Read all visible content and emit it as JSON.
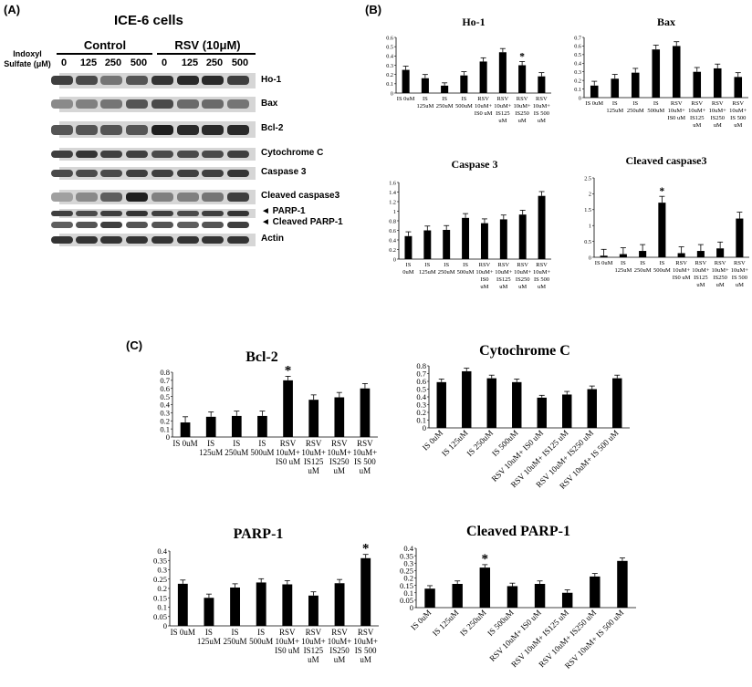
{
  "panels": {
    "a": "(A)",
    "b": "(B)",
    "c": "(C)"
  },
  "blot": {
    "title": "ICE-6 cells",
    "indoxyl_label": [
      "Indoxyl",
      "Sulfate (μM)"
    ],
    "groups": [
      "Control",
      "RSV (10μM)"
    ],
    "doses": [
      "0",
      "125",
      "250",
      "500",
      "0",
      "125",
      "250",
      "500"
    ],
    "rows": [
      {
        "name": "Ho-1",
        "intensity": [
          0.8,
          0.75,
          0.55,
          0.7,
          0.85,
          0.9,
          0.9,
          0.8
        ]
      },
      {
        "name": "Bax",
        "intensity": [
          0.45,
          0.5,
          0.55,
          0.7,
          0.75,
          0.6,
          0.6,
          0.55
        ]
      },
      {
        "name": "Bcl-2",
        "intensity": [
          0.7,
          0.7,
          0.7,
          0.7,
          0.95,
          0.9,
          0.9,
          0.9
        ]
      },
      {
        "name": "Cytochrome C",
        "intensity": [
          0.8,
          0.85,
          0.8,
          0.8,
          0.75,
          0.75,
          0.75,
          0.8
        ]
      },
      {
        "name": "Caspase 3",
        "intensity": [
          0.75,
          0.75,
          0.75,
          0.8,
          0.8,
          0.8,
          0.8,
          0.85
        ]
      },
      {
        "name": "Cleaved caspase3",
        "intensity": [
          0.35,
          0.45,
          0.65,
          0.95,
          0.5,
          0.5,
          0.55,
          0.8
        ]
      },
      {
        "name": "PARP-1",
        "intensity": [
          0.8,
          0.75,
          0.8,
          0.85,
          0.8,
          0.75,
          0.8,
          0.85
        ]
      },
      {
        "name": "Cleaved PARP-1",
        "intensity": [
          0.65,
          0.7,
          0.8,
          0.7,
          0.7,
          0.65,
          0.7,
          0.8
        ]
      },
      {
        "name": "Actin",
        "intensity": [
          0.85,
          0.85,
          0.85,
          0.85,
          0.85,
          0.85,
          0.85,
          0.85
        ]
      }
    ],
    "arrow_glyph": "◄"
  },
  "chart_data": [
    {
      "id": "ho1",
      "type": "bar",
      "title": "Ho-1",
      "ylim": [
        0,
        0.6
      ],
      "yticks": [
        "0",
        "0.1",
        "0.2",
        "0.3",
        "0.4",
        "0.5",
        "0.6"
      ],
      "categories": [
        [
          "IS 0uM"
        ],
        [
          "IS",
          "125uM"
        ],
        [
          "IS",
          "250uM"
        ],
        [
          "IS",
          "500uM"
        ],
        [
          "RSV",
          "10uM+",
          "IS0 uM"
        ],
        [
          "RSV",
          "10uM+",
          "IS125",
          "uM"
        ],
        [
          "RSV",
          "10uM+",
          "IS250",
          "uM"
        ],
        [
          "RSV",
          "10uM+",
          "IS 500",
          "uM"
        ]
      ],
      "values": [
        0.25,
        0.16,
        0.08,
        0.19,
        0.34,
        0.44,
        0.3,
        0.18
      ],
      "errors": [
        0.04,
        0.04,
        0.03,
        0.04,
        0.04,
        0.04,
        0.04,
        0.04
      ],
      "significant": [
        false,
        false,
        false,
        false,
        false,
        false,
        true,
        false
      ],
      "star": "*"
    },
    {
      "id": "bax",
      "type": "bar",
      "title": "Bax",
      "ylim": [
        0,
        0.7
      ],
      "yticks": [
        "0",
        "0.1",
        "0.2",
        "0.3",
        "0.4",
        "0.5",
        "0.6",
        "0.7"
      ],
      "categories": [
        [
          "IS 0uM"
        ],
        [
          "IS",
          "125uM"
        ],
        [
          "IS",
          "250uM"
        ],
        [
          "IS",
          "500uM"
        ],
        [
          "RSV",
          "10uM+",
          "IS0 uM"
        ],
        [
          "RSV",
          "10uM+",
          "IS125",
          "uM"
        ],
        [
          "RSV",
          "10uM+",
          "IS250",
          "uM"
        ],
        [
          "RSV",
          "10uM+",
          "IS 500",
          "uM"
        ]
      ],
      "values": [
        0.14,
        0.22,
        0.29,
        0.56,
        0.6,
        0.3,
        0.34,
        0.24
      ],
      "errors": [
        0.05,
        0.05,
        0.05,
        0.05,
        0.05,
        0.05,
        0.05,
        0.05
      ],
      "significant": [
        false,
        false,
        false,
        false,
        false,
        false,
        false,
        false
      ],
      "star": "*"
    },
    {
      "id": "casp3",
      "type": "bar",
      "title": "Caspase 3",
      "ylim": [
        0,
        1.6
      ],
      "yticks": [
        "0",
        "0.2",
        "0.4",
        "0.6",
        "0.8",
        "1",
        "1.2",
        "1.4",
        "1.6"
      ],
      "categories": [
        [
          "IS",
          "0uM"
        ],
        [
          "IS",
          "125uM"
        ],
        [
          "IS",
          "250uM"
        ],
        [
          "IS",
          "500uM"
        ],
        [
          "RSV",
          "10uM+",
          "IS0",
          "uM"
        ],
        [
          "RSV",
          "10uM+",
          "IS125",
          "uM"
        ],
        [
          "RSV",
          "10uM+",
          "IS250",
          "uM"
        ],
        [
          "RSV",
          "10uM+",
          "IS 500",
          "uM"
        ]
      ],
      "values": [
        0.48,
        0.6,
        0.61,
        0.86,
        0.75,
        0.83,
        0.93,
        1.32
      ],
      "errors": [
        0.09,
        0.09,
        0.09,
        0.09,
        0.09,
        0.09,
        0.09,
        0.09
      ],
      "significant": [
        false,
        false,
        false,
        false,
        false,
        false,
        false,
        false
      ],
      "star": "*"
    },
    {
      "id": "clcasp3",
      "type": "bar",
      "title": "Cleaved caspase3",
      "ylim": [
        0,
        2.5
      ],
      "yticks": [
        "0",
        "0.5",
        "1",
        "1.5",
        "2",
        "2.5"
      ],
      "categories": [
        [
          "IS 0uM"
        ],
        [
          "IS",
          "125uM"
        ],
        [
          "IS",
          "250uM"
        ],
        [
          "IS",
          "500uM"
        ],
        [
          "RSV",
          "10uM+",
          "IS0 uM"
        ],
        [
          "RSV",
          "10uM+",
          "IS125",
          "uM"
        ],
        [
          "RSV",
          "10uM+",
          "IS250",
          "uM"
        ],
        [
          "RSV",
          "10uM+",
          "IS 500",
          "uM"
        ]
      ],
      "values": [
        0.05,
        0.1,
        0.2,
        1.72,
        0.13,
        0.2,
        0.28,
        1.22
      ],
      "errors": [
        0.2,
        0.2,
        0.2,
        0.2,
        0.2,
        0.2,
        0.2,
        0.2
      ],
      "significant": [
        false,
        false,
        false,
        true,
        false,
        false,
        false,
        false
      ],
      "star": "*"
    },
    {
      "id": "bcl2",
      "type": "bar",
      "title": "Bcl-2",
      "ylim": [
        0,
        0.8
      ],
      "yticks": [
        "0",
        "0.1",
        "0.2",
        "0.3",
        "0.4",
        "0.5",
        "0.6",
        "0.7",
        "0.8"
      ],
      "categories": [
        [
          "IS 0uM"
        ],
        [
          "IS",
          "125uM"
        ],
        [
          "IS",
          "250uM"
        ],
        [
          "IS",
          "500uM"
        ],
        [
          "RSV",
          "10uM+",
          "IS0 uM"
        ],
        [
          "RSV",
          "10uM+",
          "IS125",
          "uM"
        ],
        [
          "RSV",
          "10uM+",
          "IS250",
          "uM"
        ],
        [
          "RSV",
          "10uM+",
          "IS 500",
          "uM"
        ]
      ],
      "values": [
        0.18,
        0.25,
        0.26,
        0.26,
        0.7,
        0.46,
        0.49,
        0.6
      ],
      "errors": [
        0.07,
        0.06,
        0.06,
        0.06,
        0.05,
        0.06,
        0.06,
        0.06
      ],
      "significant": [
        false,
        false,
        false,
        false,
        true,
        false,
        false,
        false
      ],
      "star": "*"
    },
    {
      "id": "cytc",
      "type": "bar",
      "title": "Cytochrome C",
      "ylim": [
        0,
        0.8
      ],
      "yticks": [
        "0",
        "0.1",
        "0.2",
        "0.3",
        "0.4",
        "0.5",
        "0.6",
        "0.7",
        "0.8"
      ],
      "categories": [
        [
          "IS 0uM"
        ],
        [
          "IS 125uM"
        ],
        [
          "IS 250uM"
        ],
        [
          "IS 500uM"
        ],
        [
          "RSV 10uM+ IS0 uM"
        ],
        [
          "RSV 10uM+ IS125 uM"
        ],
        [
          "RSV 10uM+ IS250 uM"
        ],
        [
          "RSV 10uM+ IS 500 uM"
        ]
      ],
      "values": [
        0.59,
        0.73,
        0.64,
        0.59,
        0.39,
        0.43,
        0.5,
        0.64
      ],
      "errors": [
        0.04,
        0.04,
        0.04,
        0.04,
        0.03,
        0.04,
        0.04,
        0.04
      ],
      "significant": [
        false,
        false,
        false,
        false,
        false,
        false,
        false,
        false
      ],
      "star": "*"
    },
    {
      "id": "parp1",
      "type": "bar",
      "title": "PARP-1",
      "ylim": [
        0,
        0.4
      ],
      "yticks": [
        "0",
        "0.05",
        "0.1",
        "0.15",
        "0.2",
        "0.25",
        "0.3",
        "0.35",
        "0.4"
      ],
      "categories": [
        [
          "IS 0uM"
        ],
        [
          "IS",
          "125uM"
        ],
        [
          "IS",
          "250uM"
        ],
        [
          "IS",
          "500uM"
        ],
        [
          "RSV",
          "10uM+",
          "IS0 uM"
        ],
        [
          "RSV",
          "10uM+",
          "IS125",
          "uM"
        ],
        [
          "RSV",
          "10uM+",
          "IS250",
          "uM"
        ],
        [
          "RSV",
          "10uM+",
          "IS 500",
          "uM"
        ]
      ],
      "values": [
        0.225,
        0.15,
        0.205,
        0.232,
        0.222,
        0.162,
        0.228,
        0.362
      ],
      "errors": [
        0.02,
        0.02,
        0.02,
        0.02,
        0.02,
        0.02,
        0.02,
        0.02
      ],
      "significant": [
        false,
        false,
        false,
        false,
        false,
        false,
        false,
        true
      ],
      "star": "*"
    },
    {
      "id": "clparp1",
      "type": "bar",
      "title": "Cleaved PARP-1",
      "ylim": [
        0,
        0.4
      ],
      "yticks": [
        "0",
        "0.05",
        "0.1",
        "0.15",
        "0.2",
        "0.25",
        "0.3",
        "0.35",
        "0.4"
      ],
      "categories": [
        [
          "IS 0uM"
        ],
        [
          "IS 125uM"
        ],
        [
          "IS 250uM"
        ],
        [
          "IS 500uM"
        ],
        [
          "RSV 10uM+ IS0 uM"
        ],
        [
          "RSV 10uM+ IS125 uM"
        ],
        [
          "RSV 10uM+ IS250 uM"
        ],
        [
          "RSV 10uM+ IS 500 uM"
        ]
      ],
      "values": [
        0.128,
        0.16,
        0.27,
        0.145,
        0.16,
        0.1,
        0.21,
        0.315
      ],
      "errors": [
        0.02,
        0.02,
        0.02,
        0.02,
        0.02,
        0.02,
        0.02,
        0.02
      ],
      "significant": [
        false,
        false,
        true,
        false,
        false,
        false,
        false,
        false
      ],
      "star": "*"
    }
  ]
}
